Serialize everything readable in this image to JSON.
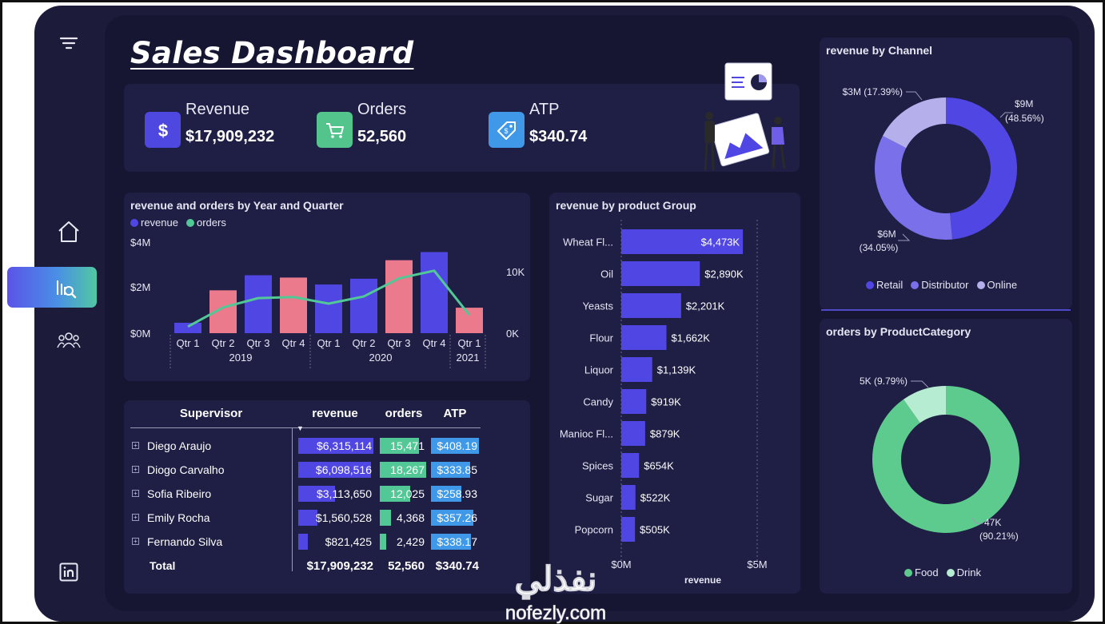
{
  "page": {
    "title": "Sales Dashboard"
  },
  "sidebar": {
    "items": [
      {
        "name": "filter-menu",
        "icon": "filter-lines-icon"
      },
      {
        "name": "home",
        "icon": "home-icon"
      },
      {
        "name": "analytics",
        "icon": "chart-search-icon",
        "active": true
      },
      {
        "name": "team",
        "icon": "people-icon"
      },
      {
        "name": "linkedin",
        "icon": "linkedin-icon"
      }
    ],
    "active_gradient": [
      "#5b54e8",
      "#4a8ee6",
      "#51c8a2"
    ]
  },
  "kpis": [
    {
      "label": "Revenue",
      "value": "$17,909,232",
      "icon": "dollar-icon",
      "color": "#4f48e0"
    },
    {
      "label": "Orders",
      "value": "52,560",
      "icon": "cart-icon",
      "color": "#52c48c"
    },
    {
      "label": "ATP",
      "value": "$340.74",
      "icon": "price-tag-icon",
      "color": "#3f98e8"
    }
  ],
  "colors": {
    "revenue": "#5046e4",
    "orders": "#52c896",
    "highlight_bar": "#ea7a8c",
    "atp": "#3f98e8",
    "food": "#5dcb8e",
    "drink": "#b6ecd2",
    "retail": "#5046e4",
    "distributor": "#7a70ea",
    "online": "#b5b0ec"
  },
  "combo": {
    "title": "revenue and orders by Year and Quarter",
    "legend": [
      "revenue",
      "orders"
    ],
    "y_ticks_left": [
      "$4M",
      "$2M",
      "$0M"
    ],
    "y_ticks_right": [
      "10K",
      "0K"
    ],
    "quarters": [
      "Qtr 1",
      "Qtr 2",
      "Qtr 3",
      "Qtr 4",
      "Qtr 1",
      "Qtr 2",
      "Qtr 3",
      "Qtr 4",
      "Qtr 1"
    ],
    "years": [
      "2019",
      "2020",
      "2021"
    ]
  },
  "product": {
    "title": "revenue by product Group",
    "x_ticks": [
      "$0M",
      "$5M"
    ],
    "x_label": "revenue"
  },
  "table": {
    "headers": [
      "Supervisor",
      "revenue",
      "orders",
      "ATP"
    ],
    "rows": [
      {
        "name": "Diego Araujo",
        "revenue": "$6,315,114",
        "orders": "15,471",
        "atp": "$408.19",
        "rev_frac": 1.0,
        "ord_frac": 0.85,
        "atp_frac": 1.0
      },
      {
        "name": "Diogo Carvalho",
        "revenue": "$6,098,516",
        "orders": "18,267",
        "atp": "$333.85",
        "rev_frac": 0.97,
        "ord_frac": 1.0,
        "atp_frac": 0.82
      },
      {
        "name": "Sofia Ribeiro",
        "revenue": "$3,113,650",
        "orders": "12,025",
        "atp": "$258.93",
        "rev_frac": 0.49,
        "ord_frac": 0.66,
        "atp_frac": 0.63
      },
      {
        "name": "Emily Rocha",
        "revenue": "$1,560,528",
        "orders": "4,368",
        "atp": "$357.26",
        "rev_frac": 0.25,
        "ord_frac": 0.24,
        "atp_frac": 0.88
      },
      {
        "name": "Fernando Silva",
        "revenue": "$821,425",
        "orders": "2,429",
        "atp": "$338.17",
        "rev_frac": 0.13,
        "ord_frac": 0.13,
        "atp_frac": 0.83
      }
    ],
    "total": {
      "name": "Total",
      "revenue": "$17,909,232",
      "orders": "52,560",
      "atp": "$340.74"
    }
  },
  "channel": {
    "title": "revenue by Channel",
    "legend": [
      "Retail",
      "Distributor",
      "Online"
    ]
  },
  "category": {
    "title": "orders by ProductCategory",
    "legend": [
      "Food",
      "Drink"
    ]
  },
  "watermark": {
    "arabic": "نفذلي",
    "latin": "nofezly.com"
  },
  "chart_data": [
    {
      "type": "bar",
      "title": "revenue and orders by Year and Quarter",
      "categories": [
        "2019 Qtr 1",
        "2019 Qtr 2",
        "2019 Qtr 3",
        "2019 Qtr 4",
        "2020 Qtr 1",
        "2020 Qtr 2",
        "2020 Qtr 3",
        "2020 Qtr 4",
        "2021 Qtr 1"
      ],
      "series": [
        {
          "name": "revenue",
          "type": "bar",
          "values": [
            0.45,
            1.85,
            2.5,
            2.4,
            2.1,
            2.35,
            3.15,
            3.5,
            1.1
          ],
          "unit": "$M"
        },
        {
          "name": "orders",
          "type": "line",
          "values": [
            1200,
            4700,
            6400,
            6600,
            5400,
            6700,
            10000,
            11400,
            3300
          ]
        }
      ],
      "bar_colors": [
        "#5046e4",
        "#ea7a8c",
        "#5046e4",
        "#ea7a8c",
        "#5046e4",
        "#5046e4",
        "#ea7a8c",
        "#5046e4",
        "#ea7a8c"
      ],
      "ylim_left": [
        0,
        4
      ],
      "ylim_right": [
        0,
        14000
      ]
    },
    {
      "type": "bar",
      "orientation": "horizontal",
      "title": "revenue by product Group",
      "categories": [
        "Wheat Fl...",
        "Oil",
        "Yeasts",
        "Flour",
        "Liquor",
        "Candy",
        "Manioc Fl...",
        "Spices",
        "Sugar",
        "Popcorn"
      ],
      "values": [
        4473,
        2890,
        2201,
        1662,
        1139,
        919,
        879,
        654,
        522,
        505
      ],
      "labels": [
        "$4,473K",
        "$2,890K",
        "$2,201K",
        "$1,662K",
        "$1,139K",
        "$919K",
        "$879K",
        "$654K",
        "$522K",
        "$505K"
      ],
      "xlim": [
        0,
        5000
      ],
      "xlabel": "revenue"
    },
    {
      "type": "pie",
      "donut": true,
      "title": "revenue by Channel",
      "categories": [
        "Retail",
        "Distributor",
        "Online"
      ],
      "values": [
        48.56,
        34.05,
        17.39
      ],
      "labels": [
        "$9M\n(48.56%)",
        "$6M\n(34.05%)",
        "$3M (17.39%)"
      ]
    },
    {
      "type": "pie",
      "donut": true,
      "title": "orders by ProductCategory",
      "categories": [
        "Food",
        "Drink"
      ],
      "values": [
        90.21,
        9.79
      ],
      "labels": [
        "47K\n(90.21%)",
        "5K (9.79%)"
      ]
    }
  ]
}
